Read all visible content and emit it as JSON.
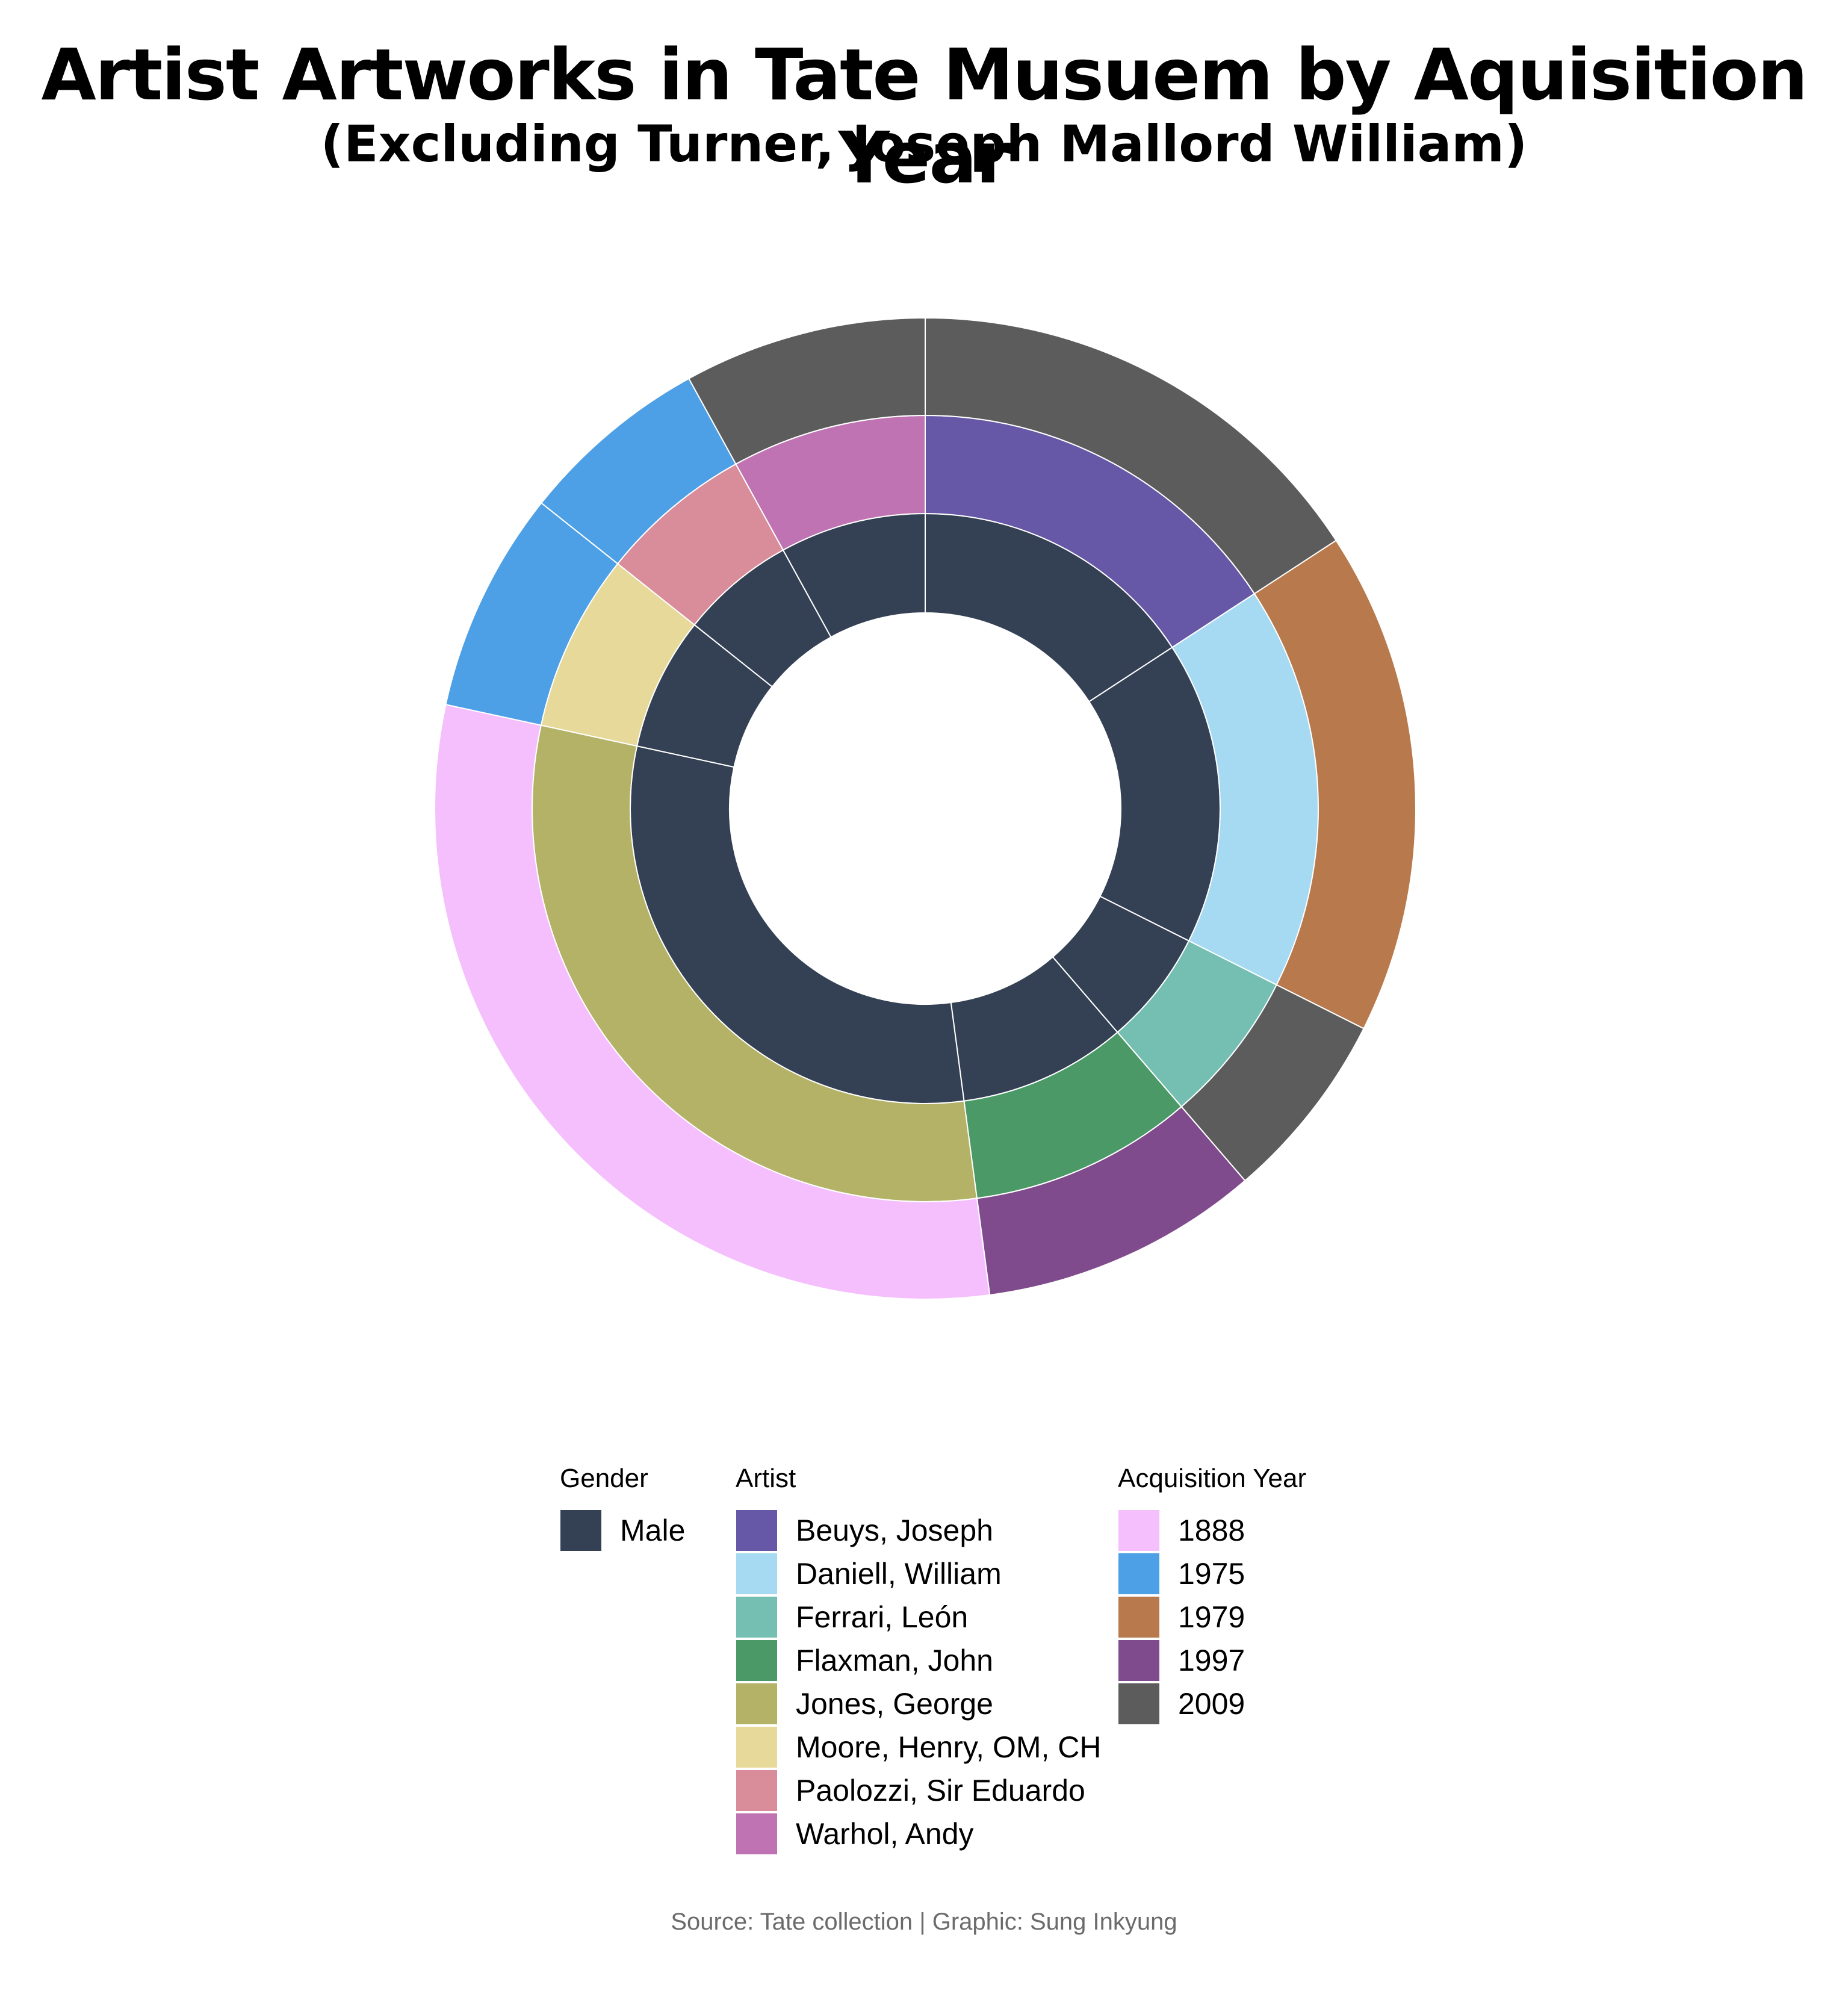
{
  "chart_data": {
    "type": "sunburst",
    "title": "Artist Artworks in Tate Musuem by Aquisition Year",
    "subtitle": "(Excluding Turner, Joseph Mallord William)",
    "caption": "Source: Tate collection | Graphic: Sung Inkyung",
    "legend_placement": "bottom",
    "colors": {
      "gender": {
        "Male": "#344154"
      },
      "artist": {
        "Beuys, Joseph": "#6658a6",
        "Daniell, William": "#a6d9f2",
        "Ferrari, León": "#75bfb2",
        "Flaxman, John": "#4b9966",
        "Jones, George": "#b3b266",
        "Moore, Henry, OM, CH": "#e6d999",
        "Paolozzi, Sir Eduardo": "#d98c99",
        "Warhol, Andy": "#bf73b2"
      },
      "year": {
        "1888": "#f5bffd",
        "1975": "#4d9fe6",
        "1979": "#b8794c",
        "1997": "#804b8c",
        "2009": "#5c5c5c"
      }
    },
    "legend": {
      "gender": {
        "title": "Gender",
        "items": [
          "Male"
        ]
      },
      "artist": {
        "title": "Artist",
        "items": [
          "Beuys, Joseph",
          "Daniell, William",
          "Ferrari, León",
          "Flaxman, John",
          "Jones, George",
          "Moore, Henry, OM, CH",
          "Paolozzi, Sir Eduardo",
          "Warhol, Andy"
        ]
      },
      "year": {
        "title": "Acquisition Year",
        "items": [
          "1888",
          "1975",
          "1979",
          "1997",
          "2009"
        ]
      }
    },
    "segments": [
      {
        "artist": "Beuys, Joseph",
        "gender": "Male",
        "year": "2009",
        "value": 15.8
      },
      {
        "artist": "Daniell, William",
        "gender": "Male",
        "year": "1979",
        "value": 16.6
      },
      {
        "artist": "Ferrari, León",
        "gender": "Male",
        "year": "2009",
        "value": 6.3
      },
      {
        "artist": "Flaxman, John",
        "gender": "Male",
        "year": "1997",
        "value": 9.2
      },
      {
        "artist": "Jones, George",
        "gender": "Male",
        "year": "1888",
        "value": 30.5
      },
      {
        "artist": "Moore, Henry, OM, CH",
        "gender": "Male",
        "year": "1975",
        "value": 7.3
      },
      {
        "artist": "Paolozzi, Sir Eduardo",
        "gender": "Male",
        "year": "1975",
        "value": 6.3
      },
      {
        "artist": "Warhol, Andy",
        "gender": "Male",
        "year": "2009",
        "value": 8.0
      }
    ]
  }
}
